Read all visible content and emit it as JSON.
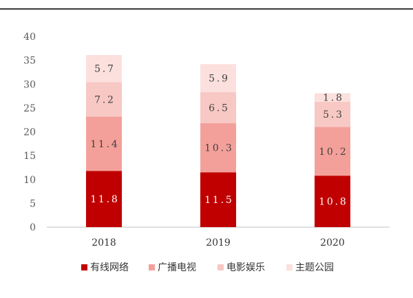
{
  "chart_data": {
    "type": "bar",
    "stacked": true,
    "categories": [
      "2018",
      "2019",
      "2020"
    ],
    "series": [
      {
        "name": "有线网络",
        "values": [
          11.8,
          11.5,
          10.8
        ],
        "color": "#c00000",
        "label_color": "#ffffff"
      },
      {
        "name": "广播电视",
        "values": [
          11.4,
          10.3,
          10.2
        ],
        "color": "#f4a09a",
        "label_color": "#404040"
      },
      {
        "name": "电影娱乐",
        "values": [
          7.2,
          6.5,
          5.3
        ],
        "color": "#f8c8c4",
        "label_color": "#404040"
      },
      {
        "name": "主题公园",
        "values": [
          5.7,
          5.9,
          1.8
        ],
        "color": "#fbe0de",
        "label_color": "#404040"
      }
    ],
    "yticks": [
      "0",
      "5",
      "10",
      "15",
      "20",
      "25",
      "30",
      "35",
      "40"
    ],
    "ylim": [
      0,
      40
    ],
    "grid": false,
    "legend_position": "bottom"
  }
}
